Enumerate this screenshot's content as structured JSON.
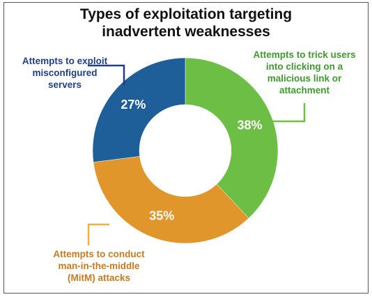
{
  "chart_data": {
    "type": "pie",
    "title": [
      "Types of exploitation targeting",
      "inadvertent weaknesses"
    ],
    "donut": true,
    "slices": [
      {
        "label": [
          "Attempts to trick users",
          "into clicking on a",
          "malicious link or",
          "attachment"
        ],
        "value": 38,
        "value_label": "38%",
        "color": "#6DBE45"
      },
      {
        "label": [
          "Attempts to conduct",
          "man-in-the-middle",
          "(MitM) attacks"
        ],
        "value": 35,
        "value_label": "35%",
        "color": "#E0962B"
      },
      {
        "label": [
          "Attempts to exploit",
          "misconfigured",
          "servers"
        ],
        "value": 27,
        "value_label": "27%",
        "color": "#1F5F99"
      }
    ],
    "label_colors": [
      "#3E9A2F",
      "#C77A1E",
      "#1F3F86"
    ],
    "legend": "none"
  }
}
